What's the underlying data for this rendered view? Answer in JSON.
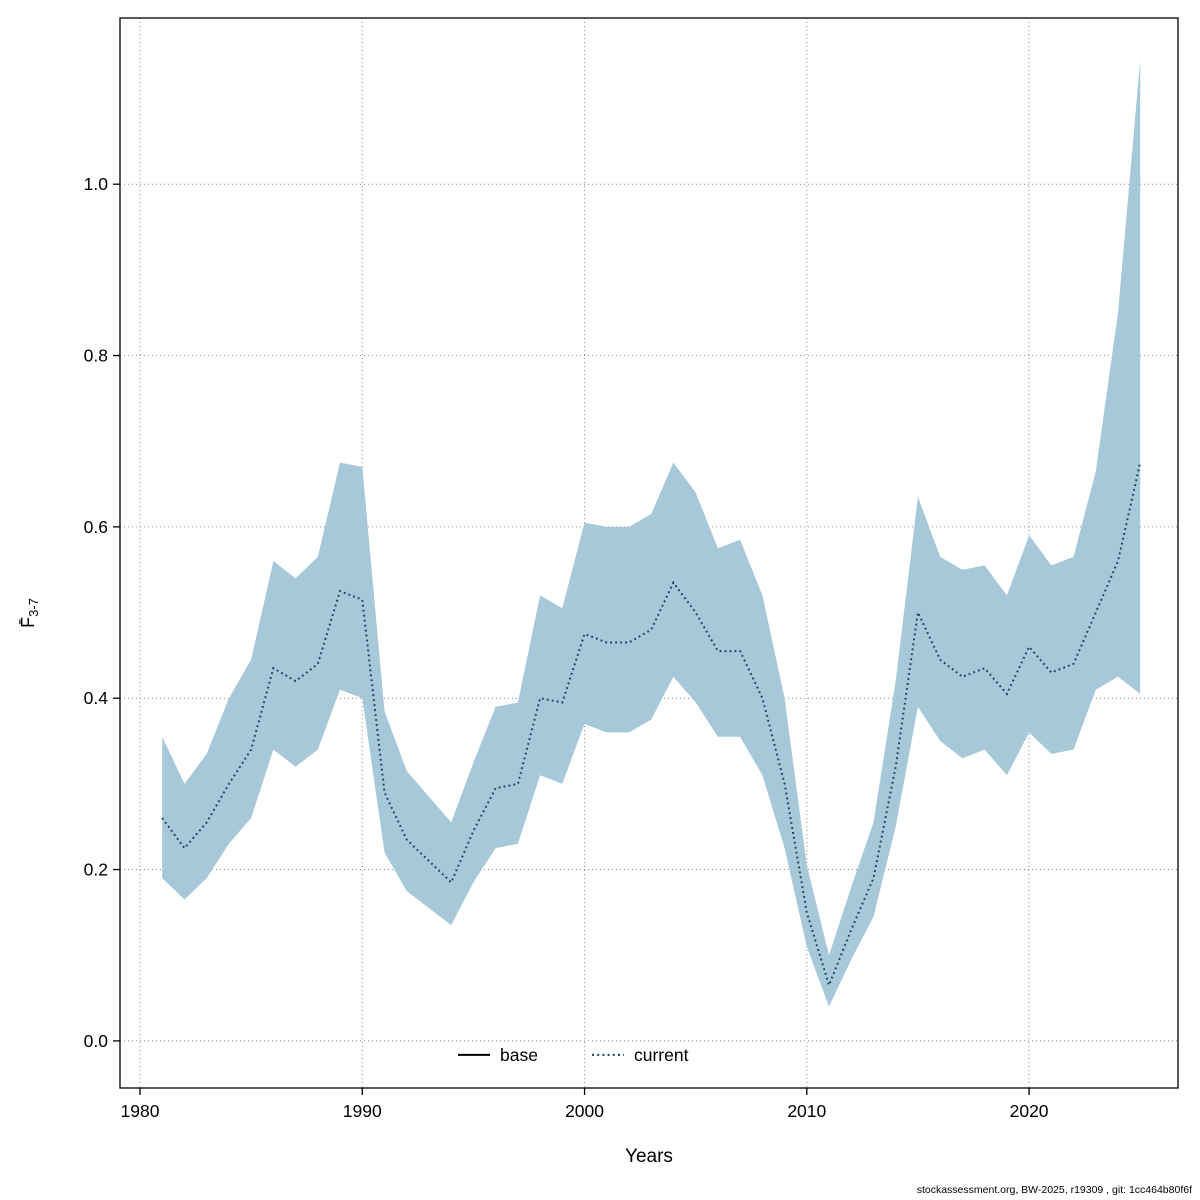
{
  "page": {
    "footer": "stockassessment.org, BW-2025, r19309 , git: 1cc464b80f6f"
  },
  "chart_data": {
    "type": "line",
    "title": "",
    "xlabel": "Years",
    "ylabel_main": "F̄",
    "ylabel_sub": "3-7",
    "legend": [
      {
        "label": "base",
        "line": "solid",
        "color": "#000000"
      },
      {
        "label": "current",
        "line": "dotted",
        "color": "#11455c"
      }
    ],
    "colors": {
      "band": "#a6c8d8",
      "line": "#11455c",
      "grid": "#8a8a8a",
      "axis": "#000000"
    },
    "axes": {
      "xlim": [
        1979.1,
        2026.7
      ],
      "ylim": [
        -0.055,
        1.194
      ],
      "xticks": [
        1980,
        1990,
        2000,
        2010,
        2020
      ],
      "xtick_labels": [
        "1980",
        "1990",
        "2000",
        "2010",
        "2020"
      ],
      "yticks": [
        0.0,
        0.2,
        0.4,
        0.6,
        0.8,
        1.0
      ],
      "ytick_labels": [
        "0.0",
        "0.2",
        "0.4",
        "0.6",
        "0.8",
        "1.0"
      ],
      "grid": true,
      "legend_position": "bottom-center"
    },
    "x": [
      1981,
      1982,
      1983,
      1984,
      1985,
      1986,
      1987,
      1988,
      1989,
      1990,
      1991,
      1992,
      1993,
      1994,
      1995,
      1996,
      1997,
      1998,
      1999,
      2000,
      2001,
      2002,
      2003,
      2004,
      2005,
      2006,
      2007,
      2008,
      2009,
      2010,
      2011,
      2012,
      2013,
      2014,
      2015,
      2016,
      2017,
      2018,
      2019,
      2020,
      2021,
      2022,
      2023,
      2024,
      2025
    ],
    "series": [
      {
        "name": "current",
        "values": [
          0.26,
          0.225,
          0.255,
          0.3,
          0.34,
          0.435,
          0.42,
          0.44,
          0.525,
          0.515,
          0.29,
          0.235,
          0.21,
          0.185,
          0.245,
          0.295,
          0.3,
          0.4,
          0.395,
          0.475,
          0.465,
          0.465,
          0.48,
          0.535,
          0.5,
          0.455,
          0.455,
          0.4,
          0.3,
          0.15,
          0.065,
          0.13,
          0.19,
          0.32,
          0.5,
          0.445,
          0.425,
          0.435,
          0.405,
          0.46,
          0.43,
          0.44,
          0.5,
          0.56,
          0.675
        ]
      },
      {
        "name": "current_lower",
        "values": [
          0.19,
          0.165,
          0.19,
          0.23,
          0.26,
          0.34,
          0.32,
          0.34,
          0.41,
          0.4,
          0.22,
          0.175,
          0.155,
          0.135,
          0.185,
          0.225,
          0.23,
          0.31,
          0.3,
          0.37,
          0.36,
          0.36,
          0.375,
          0.425,
          0.395,
          0.355,
          0.355,
          0.31,
          0.225,
          0.11,
          0.04,
          0.095,
          0.145,
          0.25,
          0.39,
          0.35,
          0.33,
          0.34,
          0.31,
          0.36,
          0.335,
          0.34,
          0.41,
          0.425,
          0.405
        ]
      },
      {
        "name": "current_upper",
        "values": [
          0.355,
          0.3,
          0.335,
          0.4,
          0.445,
          0.56,
          0.54,
          0.565,
          0.675,
          0.67,
          0.385,
          0.315,
          0.285,
          0.255,
          0.325,
          0.39,
          0.395,
          0.52,
          0.505,
          0.605,
          0.6,
          0.6,
          0.615,
          0.675,
          0.64,
          0.575,
          0.585,
          0.52,
          0.4,
          0.205,
          0.1,
          0.18,
          0.255,
          0.42,
          0.635,
          0.565,
          0.55,
          0.555,
          0.52,
          0.59,
          0.555,
          0.565,
          0.665,
          0.85,
          1.145
        ]
      }
    ]
  }
}
